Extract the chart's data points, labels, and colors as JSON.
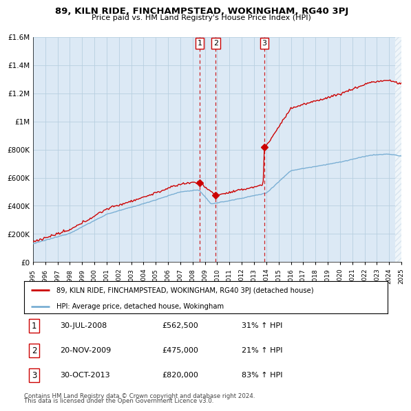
{
  "title": "89, KILN RIDE, FINCHAMPSTEAD, WOKINGHAM, RG40 3PJ",
  "subtitle": "Price paid vs. HM Land Registry's House Price Index (HPI)",
  "red_label": "89, KILN RIDE, FINCHAMPSTEAD, WOKINGHAM, RG40 3PJ (detached house)",
  "blue_label": "HPI: Average price, detached house, Wokingham",
  "transactions": [
    {
      "num": 1,
      "date": "30-JUL-2008",
      "price": "£562,500",
      "hpi": "31% ↑ HPI",
      "year": 2008.58
    },
    {
      "num": 2,
      "date": "20-NOV-2009",
      "price": "£475,000",
      "hpi": "21% ↑ HPI",
      "year": 2009.89
    },
    {
      "num": 3,
      "date": "30-OCT-2013",
      "price": "£820,000",
      "hpi": "83% ↑ HPI",
      "year": 2013.83
    }
  ],
  "transaction_prices": [
    562500,
    475000,
    820000
  ],
  "footnote1": "Contains HM Land Registry data © Crown copyright and database right 2024.",
  "footnote2": "This data is licensed under the Open Government Licence v3.0.",
  "ylim": [
    0,
    1600000
  ],
  "xlim_start": 1995,
  "xlim_end": 2025,
  "red_color": "#cc0000",
  "blue_color": "#7aafd4",
  "plot_bg_color": "#dce9f5",
  "grid_color": "#b8cfe0",
  "hatch_color": "#c8d8e8"
}
